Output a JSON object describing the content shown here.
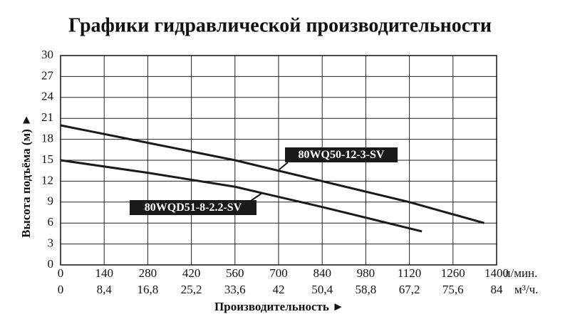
{
  "chart_data": {
    "type": "line",
    "title": "Графики гидравлической производительности",
    "ylabel": "Высота подъёма (м) ►",
    "xlabel": "Производительность ►",
    "xunit": "л/мин.",
    "x2unit": "м³/ч.",
    "xlim": [
      0,
      1400
    ],
    "xticks": [
      0,
      140,
      280,
      420,
      560,
      700,
      840,
      980,
      1120,
      1260,
      1400
    ],
    "x2lim": [
      0,
      84
    ],
    "x2ticks": [
      0,
      {
        "value": 8.4,
        "label": "8,4"
      },
      {
        "value": 16.8,
        "label": "16,8"
      },
      {
        "value": 25.2,
        "label": "25,2"
      },
      {
        "value": 33.6,
        "label": "33,6"
      },
      42,
      {
        "value": 50.4,
        "label": "50,4"
      },
      {
        "value": 58.8,
        "label": "58,8"
      },
      {
        "value": 67.2,
        "label": "67,2"
      },
      {
        "value": 75.6,
        "label": "75,6"
      },
      84
    ],
    "ylim": [
      0,
      30
    ],
    "yticks": [
      0,
      3,
      6,
      9,
      12,
      15,
      18,
      21,
      24,
      27,
      30
    ],
    "grid": true,
    "series": [
      {
        "name": "80WQ50-12-3-SV",
        "color": "#1a1a1a",
        "x": [
          0,
          280,
          560,
          840,
          1120,
          1360
        ],
        "values": [
          20,
          17.5,
          15,
          12,
          9,
          6
        ]
      },
      {
        "name": "80WQD51-8-2.2-SV",
        "color": "#1a1a1a",
        "x": [
          0,
          280,
          560,
          840,
          1160
        ],
        "values": [
          15,
          13.2,
          11.2,
          8.3,
          4.8
        ]
      }
    ]
  }
}
